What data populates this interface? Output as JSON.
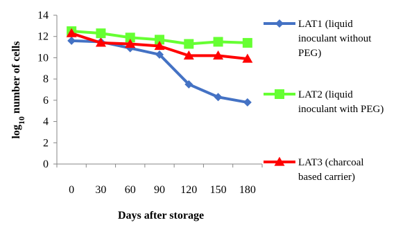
{
  "chart_data": {
    "type": "line",
    "title": "",
    "xlabel": "Days after storage",
    "ylabel": {
      "prefix": "log",
      "subscript": "10",
      "suffix": " number of cells"
    },
    "categories": [
      "0",
      "30",
      "60",
      "90",
      "120",
      "150",
      "180"
    ],
    "ylim": [
      0,
      14
    ],
    "yticks": [
      0,
      2,
      4,
      6,
      8,
      10,
      12,
      14
    ],
    "grid": false,
    "legend_position": "right",
    "series": [
      {
        "name": "LAT1 (liquid inoculant without PEG)",
        "legend_lines": [
          "LAT1 (liquid",
          "inoculant without",
          "PEG)"
        ],
        "values": [
          11.6,
          11.5,
          10.9,
          10.3,
          7.5,
          6.3,
          5.8
        ],
        "color": "#4472C4",
        "marker": "diamond"
      },
      {
        "name": "LAT2 (liquid inoculant with PEG)",
        "legend_lines": [
          "LAT2 (liquid",
          "inoculant with PEG)"
        ],
        "values": [
          12.5,
          12.3,
          11.9,
          11.7,
          11.3,
          11.5,
          11.4
        ],
        "color": "#66FF33",
        "marker": "square"
      },
      {
        "name": "LAT3 (charcoal based carrier)",
        "legend_lines": [
          "LAT3 (charcoal",
          "based carrier)"
        ],
        "values": [
          12.3,
          11.4,
          11.3,
          11.1,
          10.2,
          10.2,
          9.9
        ],
        "color": "#FF0000",
        "marker": "triangle"
      }
    ]
  }
}
